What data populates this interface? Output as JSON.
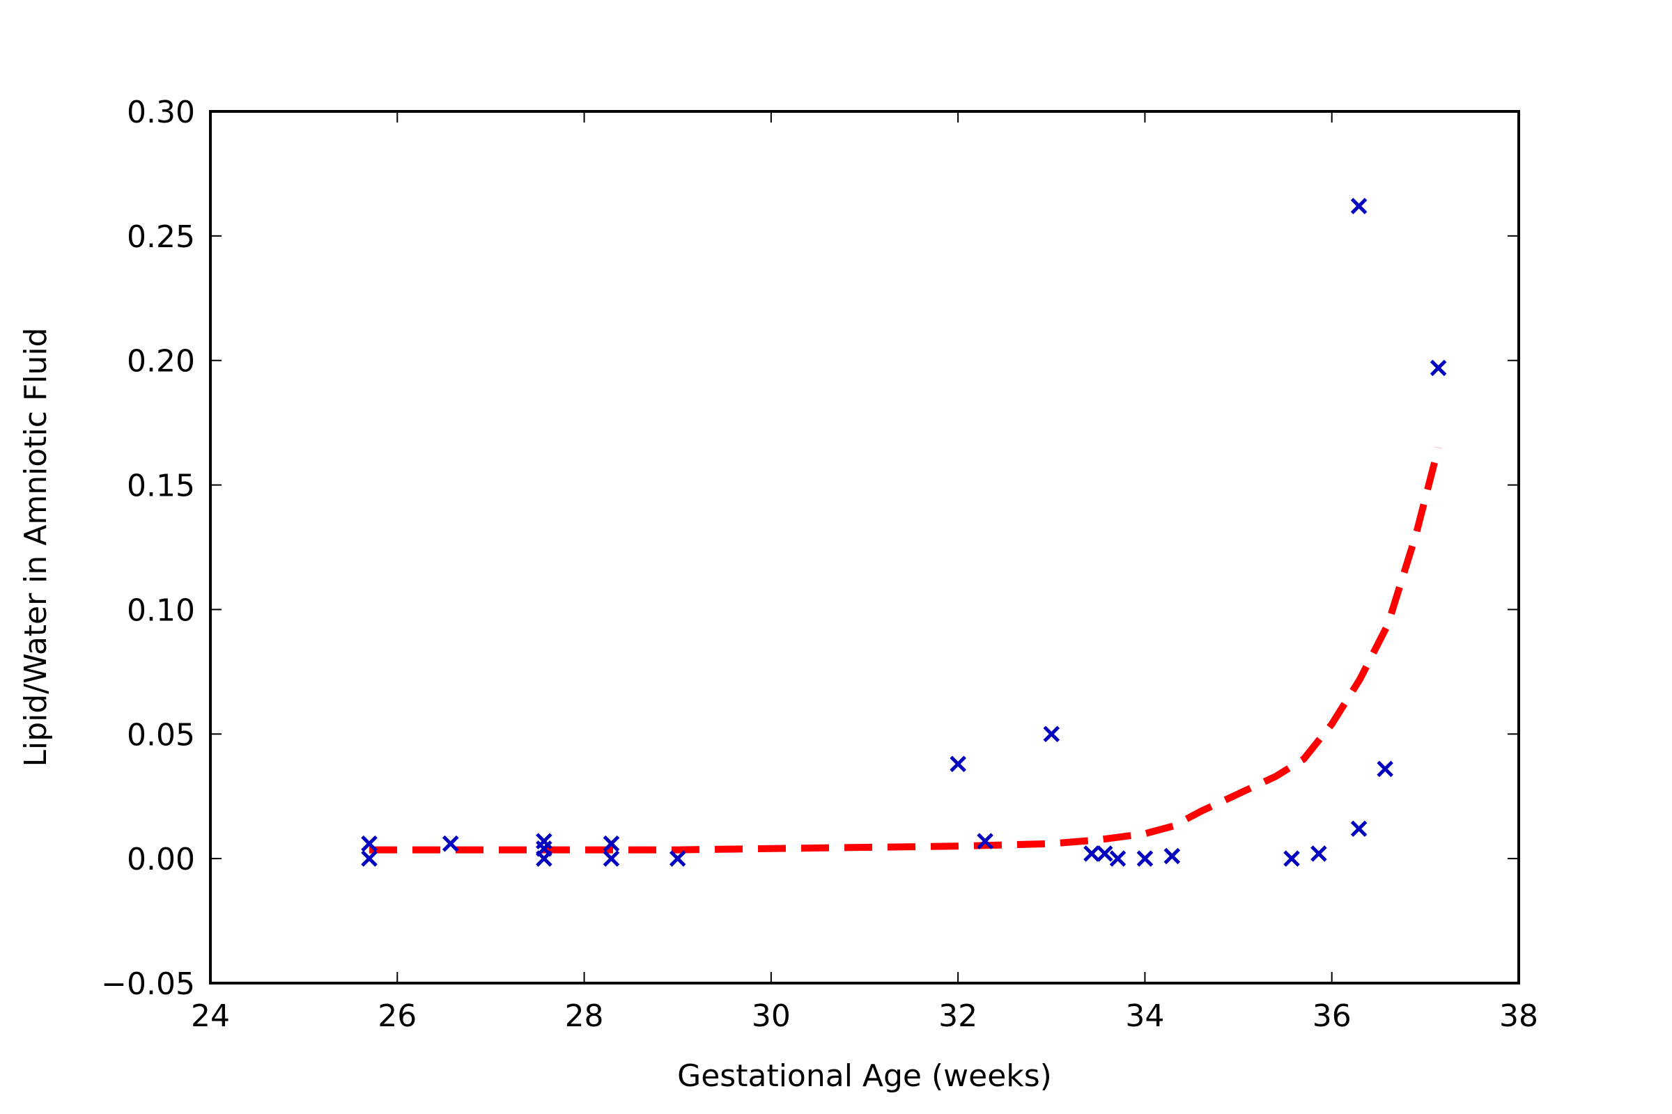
{
  "chart_data": {
    "type": "scatter",
    "title": "",
    "xlabel": "Gestational Age (weeks)",
    "ylabel": "Lipid/Water in Amniotic Fluid",
    "xlim": [
      24,
      38
    ],
    "ylim": [
      -0.05,
      0.3
    ],
    "x_ticks": [
      24,
      26,
      28,
      30,
      32,
      34,
      36,
      38
    ],
    "x_tick_labels": [
      "24",
      "26",
      "28",
      "30",
      "32",
      "34",
      "36",
      "38"
    ],
    "y_ticks": [
      -0.05,
      0.0,
      0.05,
      0.1,
      0.15,
      0.2,
      0.25,
      0.3
    ],
    "y_tick_labels": [
      "−0.05",
      "0.00",
      "0.05",
      "0.10",
      "0.15",
      "0.20",
      "0.25",
      "0.30"
    ],
    "grid": false,
    "legend": "none",
    "colors": {
      "points": "#0000bf",
      "fit": "#ff0000"
    },
    "series": [
      {
        "kind": "scatter",
        "marker": "x",
        "points": [
          {
            "x": 25.7,
            "y": 0.006
          },
          {
            "x": 25.7,
            "y": 0.0
          },
          {
            "x": 26.57,
            "y": 0.006
          },
          {
            "x": 27.57,
            "y": 0.007
          },
          {
            "x": 27.57,
            "y": 0.004
          },
          {
            "x": 27.57,
            "y": 0.0
          },
          {
            "x": 28.29,
            "y": 0.006
          },
          {
            "x": 28.29,
            "y": 0.0
          },
          {
            "x": 29.0,
            "y": 0.0
          },
          {
            "x": 32.0,
            "y": 0.038
          },
          {
            "x": 32.29,
            "y": 0.007
          },
          {
            "x": 33.0,
            "y": 0.05
          },
          {
            "x": 33.43,
            "y": 0.002
          },
          {
            "x": 33.57,
            "y": 0.002
          },
          {
            "x": 33.71,
            "y": 0.0
          },
          {
            "x": 34.0,
            "y": 0.0
          },
          {
            "x": 34.29,
            "y": 0.001
          },
          {
            "x": 35.57,
            "y": 0.0
          },
          {
            "x": 35.86,
            "y": 0.002
          },
          {
            "x": 36.29,
            "y": 0.262
          },
          {
            "x": 36.29,
            "y": 0.012
          },
          {
            "x": 36.57,
            "y": 0.036
          },
          {
            "x": 37.14,
            "y": 0.197
          }
        ]
      },
      {
        "kind": "line",
        "style": "dashed",
        "points": [
          {
            "x": 25.7,
            "y": 0.0035
          },
          {
            "x": 27.0,
            "y": 0.0035
          },
          {
            "x": 28.0,
            "y": 0.0035
          },
          {
            "x": 29.0,
            "y": 0.0035
          },
          {
            "x": 30.0,
            "y": 0.004
          },
          {
            "x": 31.0,
            "y": 0.0045
          },
          {
            "x": 32.0,
            "y": 0.005
          },
          {
            "x": 32.5,
            "y": 0.0055
          },
          {
            "x": 33.0,
            "y": 0.006
          },
          {
            "x": 33.5,
            "y": 0.0075
          },
          {
            "x": 34.0,
            "y": 0.01
          },
          {
            "x": 34.3,
            "y": 0.013
          },
          {
            "x": 34.6,
            "y": 0.019
          },
          {
            "x": 35.0,
            "y": 0.026
          },
          {
            "x": 35.4,
            "y": 0.033
          },
          {
            "x": 35.7,
            "y": 0.04
          },
          {
            "x": 36.0,
            "y": 0.054
          },
          {
            "x": 36.3,
            "y": 0.072
          },
          {
            "x": 36.6,
            "y": 0.094
          },
          {
            "x": 36.9,
            "y": 0.13
          },
          {
            "x": 37.14,
            "y": 0.165
          }
        ]
      }
    ]
  }
}
